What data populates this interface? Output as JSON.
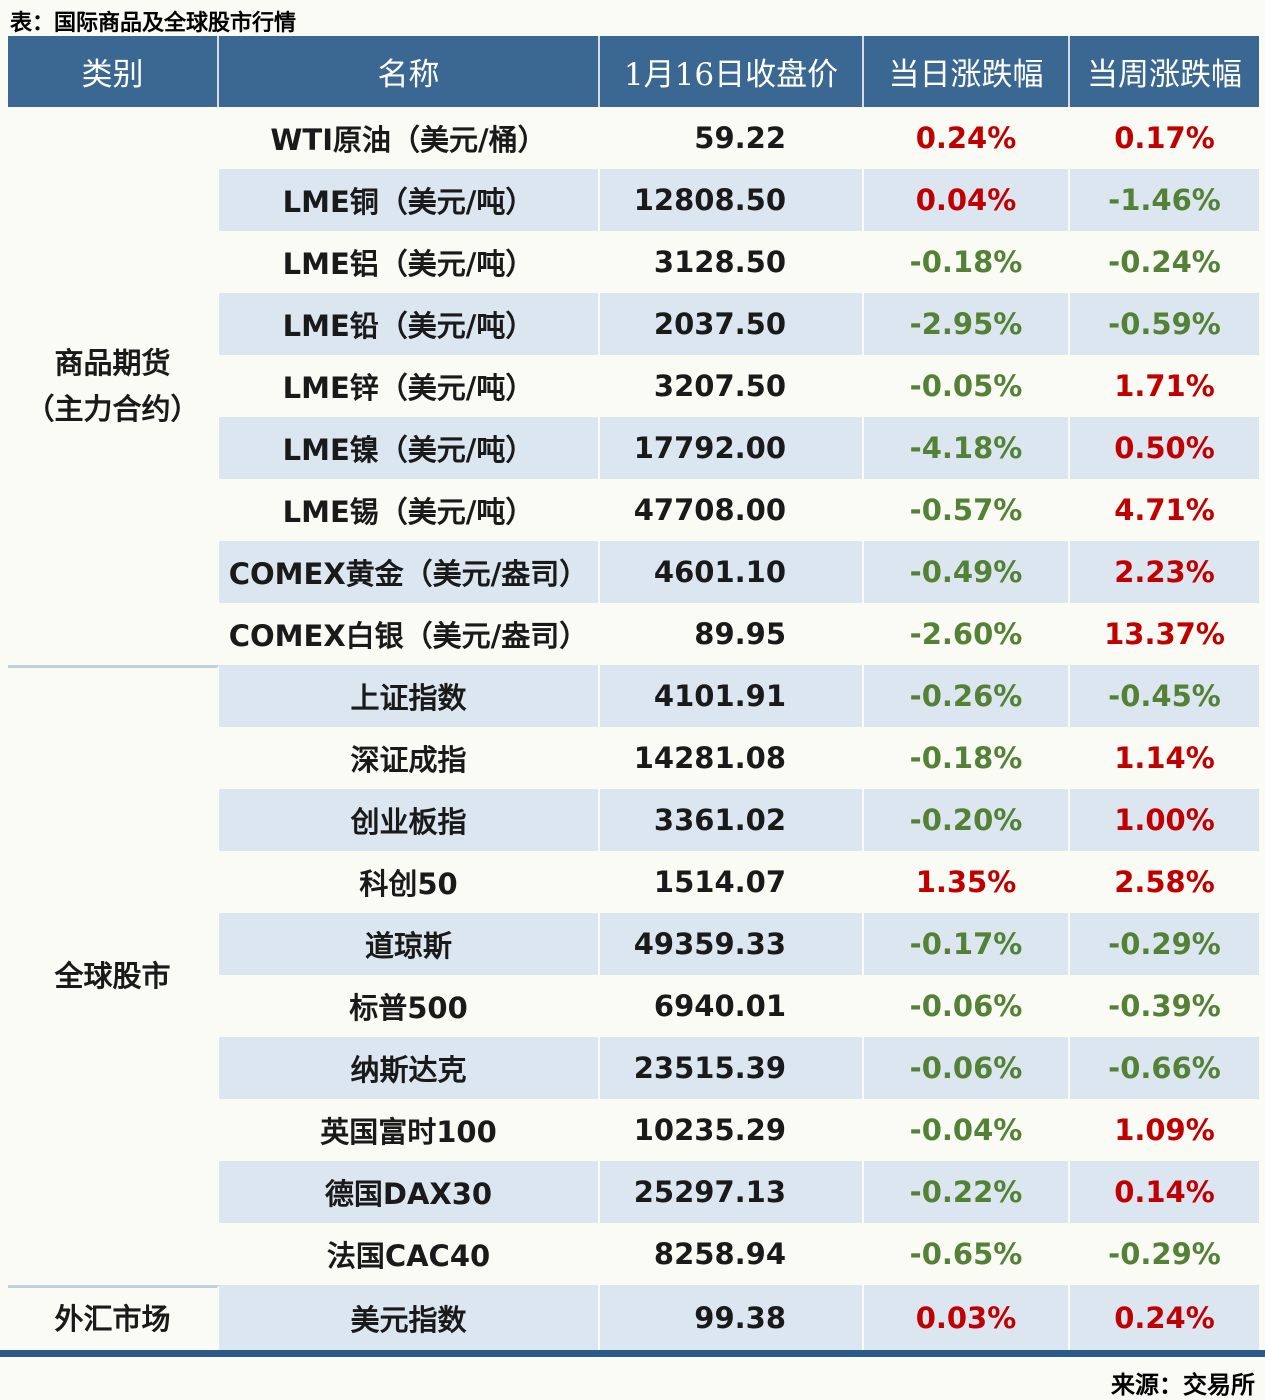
{
  "title": "表：国际商品及全球股市行情",
  "source": "来源：交易所",
  "colors": {
    "header_bg": "#3A6892",
    "stripe": "#DCE6F1",
    "up_red": "#C00000",
    "down_green": "#538135",
    "bottom_border": "#2E5A87"
  },
  "chart_data": {
    "type": "table",
    "columns": [
      "类别",
      "名称",
      "1月16日收盘价",
      "当日涨跌幅",
      "当周涨跌幅"
    ],
    "categories": [
      {
        "label": "商品期货（主力合约）",
        "line1": "商品期货",
        "line2": "（主力合约）",
        "rows_spanned": 9
      },
      {
        "label": "全球股市",
        "line1": "全球股市",
        "line2": "",
        "rows_spanned": 10
      },
      {
        "label": "外汇市场",
        "line1": "外汇市场",
        "line2": "",
        "rows_spanned": 1
      }
    ],
    "rows": [
      {
        "category": "商品期货（主力合约）",
        "name": "WTI原油（美元/桶）",
        "close": "59.22",
        "daily": "0.24%",
        "daily_dir": "up",
        "weekly": "0.17%",
        "weekly_dir": "up"
      },
      {
        "category": "商品期货（主力合约）",
        "name": "LME铜（美元/吨）",
        "close": "12808.50",
        "daily": "0.04%",
        "daily_dir": "up",
        "weekly": "-1.46%",
        "weekly_dir": "down"
      },
      {
        "category": "商品期货（主力合约）",
        "name": "LME铝（美元/吨）",
        "close": "3128.50",
        "daily": "-0.18%",
        "daily_dir": "down",
        "weekly": "-0.24%",
        "weekly_dir": "down"
      },
      {
        "category": "商品期货（主力合约）",
        "name": "LME铅（美元/吨）",
        "close": "2037.50",
        "daily": "-2.95%",
        "daily_dir": "down",
        "weekly": "-0.59%",
        "weekly_dir": "down"
      },
      {
        "category": "商品期货（主力合约）",
        "name": "LME锌（美元/吨）",
        "close": "3207.50",
        "daily": "-0.05%",
        "daily_dir": "down",
        "weekly": "1.71%",
        "weekly_dir": "up"
      },
      {
        "category": "商品期货（主力合约）",
        "name": "LME镍（美元/吨）",
        "close": "17792.00",
        "daily": "-4.18%",
        "daily_dir": "down",
        "weekly": "0.50%",
        "weekly_dir": "up"
      },
      {
        "category": "商品期货（主力合约）",
        "name": "LME锡（美元/吨）",
        "close": "47708.00",
        "daily": "-0.57%",
        "daily_dir": "down",
        "weekly": "4.71%",
        "weekly_dir": "up"
      },
      {
        "category": "商品期货（主力合约）",
        "name": "COMEX黄金（美元/盎司）",
        "close": "4601.10",
        "daily": "-0.49%",
        "daily_dir": "down",
        "weekly": "2.23%",
        "weekly_dir": "up"
      },
      {
        "category": "商品期货（主力合约）",
        "name": "COMEX白银（美元/盎司）",
        "close": "89.95",
        "daily": "-2.60%",
        "daily_dir": "down",
        "weekly": "13.37%",
        "weekly_dir": "up"
      },
      {
        "category": "全球股市",
        "name": "上证指数",
        "close": "4101.91",
        "daily": "-0.26%",
        "daily_dir": "down",
        "weekly": "-0.45%",
        "weekly_dir": "down"
      },
      {
        "category": "全球股市",
        "name": "深证成指",
        "close": "14281.08",
        "daily": "-0.18%",
        "daily_dir": "down",
        "weekly": "1.14%",
        "weekly_dir": "up"
      },
      {
        "category": "全球股市",
        "name": "创业板指",
        "close": "3361.02",
        "daily": "-0.20%",
        "daily_dir": "down",
        "weekly": "1.00%",
        "weekly_dir": "up"
      },
      {
        "category": "全球股市",
        "name": "科创50",
        "close": "1514.07",
        "daily": "1.35%",
        "daily_dir": "up",
        "weekly": "2.58%",
        "weekly_dir": "up"
      },
      {
        "category": "全球股市",
        "name": "道琼斯",
        "close": "49359.33",
        "daily": "-0.17%",
        "daily_dir": "down",
        "weekly": "-0.29%",
        "weekly_dir": "down"
      },
      {
        "category": "全球股市",
        "name": "标普500",
        "close": "6940.01",
        "daily": "-0.06%",
        "daily_dir": "down",
        "weekly": "-0.39%",
        "weekly_dir": "down"
      },
      {
        "category": "全球股市",
        "name": "纳斯达克",
        "close": "23515.39",
        "daily": "-0.06%",
        "daily_dir": "down",
        "weekly": "-0.66%",
        "weekly_dir": "down"
      },
      {
        "category": "全球股市",
        "name": "英国富时100",
        "close": "10235.29",
        "daily": "-0.04%",
        "daily_dir": "down",
        "weekly": "1.09%",
        "weekly_dir": "up"
      },
      {
        "category": "全球股市",
        "name": "德国DAX30",
        "close": "25297.13",
        "daily": "-0.22%",
        "daily_dir": "down",
        "weekly": "0.14%",
        "weekly_dir": "up"
      },
      {
        "category": "全球股市",
        "name": "法国CAC40",
        "close": "8258.94",
        "daily": "-0.65%",
        "daily_dir": "down",
        "weekly": "-0.29%",
        "weekly_dir": "down"
      },
      {
        "category": "外汇市场",
        "name": "美元指数",
        "close": "99.38",
        "daily": "0.03%",
        "daily_dir": "up",
        "weekly": "0.24%",
        "weekly_dir": "up"
      }
    ]
  }
}
